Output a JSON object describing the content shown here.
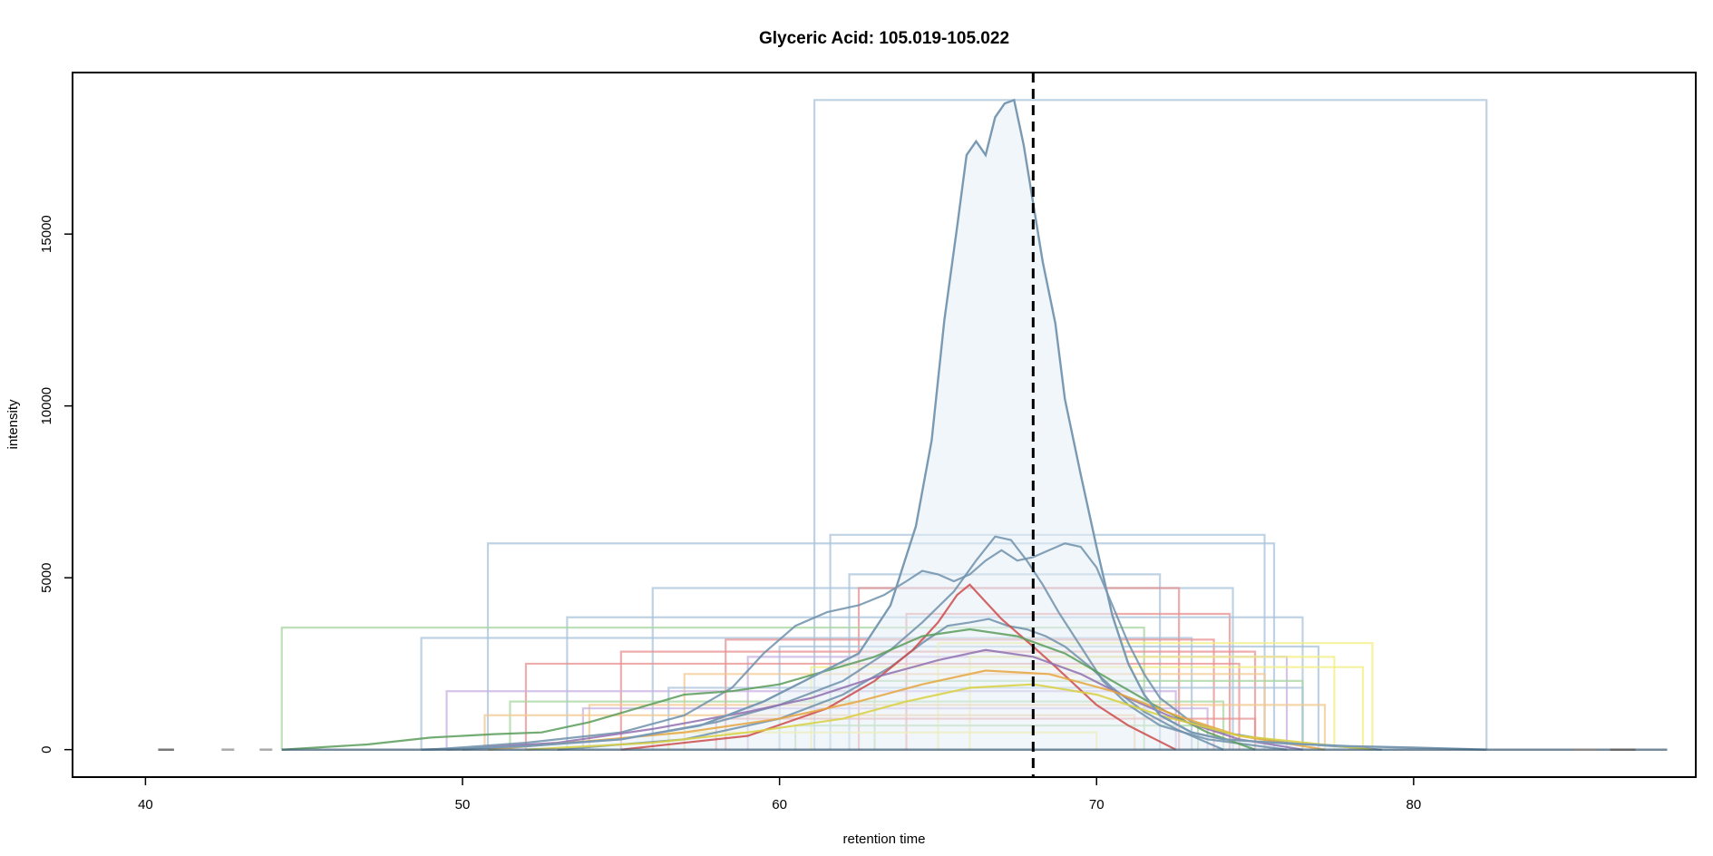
{
  "chart_data": {
    "type": "line",
    "title": "Glyceric Acid: 105.019-105.022",
    "xlabel": "retention time",
    "ylabel": "intensity",
    "xlim": [
      37.7,
      88.9
    ],
    "ylim": [
      -800,
      19700
    ],
    "x_ticks": [
      40,
      50,
      60,
      70,
      80
    ],
    "y_ticks": [
      0,
      5000,
      10000,
      15000
    ],
    "grid": false,
    "legend": "none",
    "reference_line": {
      "x": 68.0,
      "style": "dashed",
      "color": "#000000"
    },
    "main_peak": {
      "color": "#7a9ab3",
      "fill": "#e6eef6",
      "x": [
        48.7,
        52.0,
        55.0,
        57.5,
        59.5,
        61.0,
        62.5,
        63.5,
        64.3,
        64.8,
        65.2,
        65.6,
        65.9,
        66.2,
        66.5,
        66.8,
        67.1,
        67.4,
        67.7,
        68.0,
        68.3,
        68.7,
        69.0,
        69.5,
        70.0,
        70.5,
        71.0,
        71.5,
        72.0,
        73.0,
        74.0,
        76.0,
        78.0,
        80.0,
        82.3
      ],
      "y": [
        0,
        100,
        300,
        700,
        1400,
        2100,
        2800,
        4200,
        6500,
        9000,
        12500,
        15200,
        17300,
        17700,
        17300,
        18400,
        18800,
        18900,
        17600,
        15900,
        14200,
        12400,
        10200,
        8000,
        5900,
        3900,
        2500,
        1600,
        1000,
        500,
        300,
        180,
        100,
        60,
        0
      ]
    },
    "secondary_peaks": [
      {
        "color": "#6f90aa",
        "x": [
          49,
          52,
          55,
          57,
          58.5,
          59.5,
          60.5,
          61.5,
          62.5,
          63.3,
          64.0,
          64.5,
          65.0,
          65.5,
          66.0,
          66.5,
          67.0,
          67.5,
          68.0,
          68.5,
          69.0,
          69.5,
          70.0,
          70.5,
          71.0,
          71.5,
          72.0,
          73.0,
          74.0,
          76.0,
          79.0
        ],
        "y": [
          0,
          200,
          500,
          1000,
          1800,
          2800,
          3600,
          4000,
          4200,
          4500,
          4900,
          5200,
          5100,
          4900,
          5100,
          5500,
          5800,
          5500,
          5600,
          5800,
          6000,
          5900,
          5300,
          4200,
          3100,
          2200,
          1500,
          800,
          500,
          200,
          0
        ]
      },
      {
        "color": "#6f90aa",
        "x": [
          50,
          55,
          58,
          60,
          62,
          63.5,
          64.5,
          65.5,
          66.2,
          66.8,
          67.3,
          67.8,
          68.3,
          68.8,
          69.5,
          70.2,
          71.0,
          72.0,
          73.5,
          76.0
        ],
        "y": [
          0,
          300,
          800,
          1300,
          2000,
          2900,
          3700,
          4600,
          5500,
          6200,
          6100,
          5500,
          4800,
          4000,
          3000,
          2000,
          1300,
          700,
          300,
          0
        ]
      },
      {
        "color": "#6f90aa",
        "x": [
          53,
          57,
          60,
          62,
          63.5,
          64.5,
          65.3,
          66.0,
          66.6,
          67.2,
          67.8,
          68.4,
          69.0,
          69.8,
          70.5,
          71.5,
          72.5,
          74.0
        ],
        "y": [
          0,
          300,
          900,
          1600,
          2400,
          3100,
          3600,
          3700,
          3800,
          3600,
          3500,
          3300,
          3000,
          2400,
          1800,
          1100,
          600,
          0
        ]
      },
      {
        "color": "#cc4b4b",
        "x": [
          55,
          59,
          61.5,
          63.0,
          64.2,
          65.0,
          65.6,
          66.0,
          66.5,
          67.0,
          67.5,
          68.0,
          68.6,
          69.3,
          70.0,
          71.0,
          72.5
        ],
        "y": [
          0,
          400,
          1200,
          2000,
          2900,
          3700,
          4500,
          4800,
          4300,
          3800,
          3400,
          3000,
          2500,
          1900,
          1300,
          700,
          0
        ]
      },
      {
        "color": "#5a9e5a",
        "x": [
          44.3,
          47,
          49,
          51,
          52.5,
          54,
          55.5,
          57,
          58.5,
          60,
          61.5,
          63,
          64.5,
          66,
          67.5,
          69,
          70.5,
          72,
          73.5,
          75
        ],
        "y": [
          0,
          150,
          350,
          450,
          500,
          800,
          1200,
          1600,
          1700,
          1900,
          2300,
          2700,
          3300,
          3500,
          3300,
          2800,
          2000,
          1200,
          500,
          0
        ]
      },
      {
        "color": "#9070b0",
        "x": [
          49.5,
          53,
          56,
          59,
          61,
          63,
          65,
          66.5,
          68,
          69.5,
          71,
          72.5,
          74.5,
          76.5
        ],
        "y": [
          0,
          200,
          600,
          1100,
          1500,
          2100,
          2600,
          2900,
          2700,
          2200,
          1500,
          900,
          300,
          0
        ]
      },
      {
        "color": "#e6a640",
        "x": [
          50.8,
          54,
          57,
          60,
          62.5,
          64.5,
          66.5,
          68.5,
          70.5,
          72.5,
          74.5,
          77.2
        ],
        "y": [
          0,
          250,
          500,
          900,
          1400,
          1900,
          2300,
          2200,
          1700,
          1000,
          400,
          0
        ]
      },
      {
        "color": "#d9d040",
        "x": [
          52,
          56,
          59,
          62,
          64,
          66,
          68,
          70,
          72,
          74.5,
          78.7
        ],
        "y": [
          0,
          200,
          500,
          900,
          1400,
          1800,
          1900,
          1600,
          1000,
          400,
          0
        ]
      }
    ],
    "peak_boxes": [
      {
        "x0": 61.1,
        "x1": 82.3,
        "height": 18900,
        "color": "#a9c3da"
      },
      {
        "x0": 50.8,
        "x1": 75.6,
        "height": 6000,
        "color": "#a9c3da"
      },
      {
        "x0": 61.6,
        "x1": 75.3,
        "height": 6250,
        "color": "#a9c3da"
      },
      {
        "x0": 62.2,
        "x1": 72.0,
        "height": 5100,
        "color": "#a9c3da"
      },
      {
        "x0": 56.0,
        "x1": 74.3,
        "height": 4700,
        "color": "#a9c3da"
      },
      {
        "x0": 62.5,
        "x1": 72.6,
        "height": 4700,
        "color": "#e89090"
      },
      {
        "x0": 64.0,
        "x1": 74.2,
        "height": 3950,
        "color": "#e89090"
      },
      {
        "x0": 53.3,
        "x1": 76.5,
        "height": 3850,
        "color": "#a9c3da"
      },
      {
        "x0": 44.3,
        "x1": 71.5,
        "height": 3550,
        "color": "#a8d5a0"
      },
      {
        "x0": 48.7,
        "x1": 73.0,
        "height": 3250,
        "color": "#a9c3da"
      },
      {
        "x0": 58.3,
        "x1": 73.7,
        "height": 3200,
        "color": "#e89090"
      },
      {
        "x0": 60.0,
        "x1": 77.0,
        "height": 3000,
        "color": "#a9c3da"
      },
      {
        "x0": 65.0,
        "x1": 78.7,
        "height": 3100,
        "color": "#f2ee80"
      },
      {
        "x0": 55.0,
        "x1": 75.0,
        "height": 2850,
        "color": "#e89090"
      },
      {
        "x0": 59.0,
        "x1": 76.0,
        "height": 2700,
        "color": "#c8b0e0"
      },
      {
        "x0": 66.0,
        "x1": 77.5,
        "height": 2700,
        "color": "#f2ee80"
      },
      {
        "x0": 52.0,
        "x1": 74.5,
        "height": 2500,
        "color": "#e89090"
      },
      {
        "x0": 61.0,
        "x1": 78.4,
        "height": 2400,
        "color": "#f2ee80"
      },
      {
        "x0": 57.0,
        "x1": 75.3,
        "height": 2200,
        "color": "#f2c890"
      },
      {
        "x0": 63.0,
        "x1": 76.5,
        "height": 2000,
        "color": "#a8d5a0"
      },
      {
        "x0": 49.5,
        "x1": 72.5,
        "height": 1700,
        "color": "#c8b0e0"
      },
      {
        "x0": 56.5,
        "x1": 76.5,
        "height": 1800,
        "color": "#a9c3da"
      },
      {
        "x0": 51.5,
        "x1": 74.0,
        "height": 1400,
        "color": "#a8d5a0"
      },
      {
        "x0": 54.0,
        "x1": 77.2,
        "height": 1300,
        "color": "#f2c890"
      },
      {
        "x0": 53.8,
        "x1": 73.5,
        "height": 1200,
        "color": "#c8b0e0"
      },
      {
        "x0": 50.7,
        "x1": 71.2,
        "height": 1000,
        "color": "#f2c890"
      },
      {
        "x0": 58.0,
        "x1": 75.0,
        "height": 900,
        "color": "#e89090"
      },
      {
        "x0": 60.5,
        "x1": 73.2,
        "height": 700,
        "color": "#a8d5a0"
      },
      {
        "x0": 56.5,
        "x1": 70.0,
        "height": 500,
        "color": "#f2ee80"
      }
    ],
    "noise_segments": [
      {
        "x": [
          40.4,
          40.9
        ],
        "color": "#777777"
      },
      {
        "x": [
          42.4,
          42.8
        ],
        "color": "#aaaaaa"
      },
      {
        "x": [
          43.6,
          44.0
        ],
        "color": "#aaaaaa"
      },
      {
        "x": [
          85.0,
          85.8
        ],
        "color": "#888888"
      },
      {
        "x": [
          86.2,
          87.0
        ],
        "color": "#666666"
      }
    ]
  }
}
